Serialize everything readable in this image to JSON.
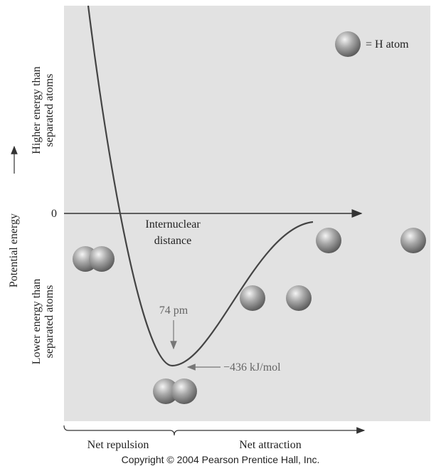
{
  "legend": {
    "label": "= H atom"
  },
  "y_axis": {
    "label": "Potential energy",
    "zero": "0",
    "upper": {
      "lines": [
        "Higher energy than",
        "separated atoms"
      ]
    },
    "lower": {
      "lines": [
        "Lower energy than",
        "separated atoms"
      ]
    }
  },
  "x_axis": {
    "lines": [
      "Internuclear",
      "distance"
    ]
  },
  "annotations": {
    "bond_length": "74 pm",
    "energy": "−436 kJ/mol"
  },
  "regions": {
    "repulsion": "Net repulsion",
    "attraction": "Net attraction"
  },
  "footer": {
    "copyright": "Copyright © 2004 Pearson Prentice Hall, Inc."
  }
}
